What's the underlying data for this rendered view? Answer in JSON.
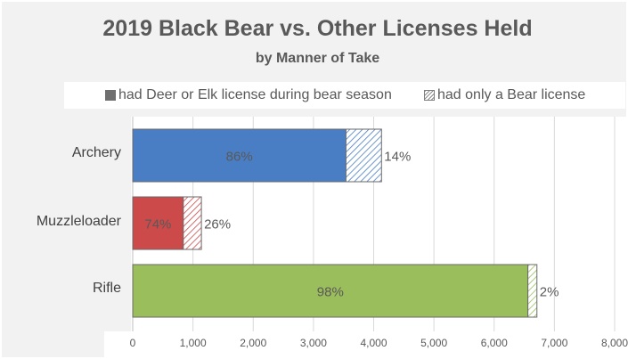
{
  "chart_data": {
    "type": "bar",
    "orientation": "horizontal",
    "stacked": true,
    "title": "2019 Black Bear vs. Other Licenses Held",
    "subtitle": "by Manner of Take",
    "categories": [
      "Archery",
      "Muzzleloader",
      "Rifle"
    ],
    "series": [
      {
        "name": "had Deer or Elk license during bear season",
        "values": [
          3540,
          840,
          6560
        ],
        "labels": [
          "86%",
          "74%",
          "98%"
        ],
        "colors": [
          "#4a7ec4",
          "#cc4a4a",
          "#9bbe5c"
        ],
        "fill": "solid"
      },
      {
        "name": "had only a Bear license",
        "values": [
          590,
          300,
          150
        ],
        "labels": [
          "14%",
          "26%",
          "2%"
        ],
        "colors": [
          "#4a7ec4",
          "#cc4a4a",
          "#9bbe5c"
        ],
        "fill": "hatched"
      }
    ],
    "xlim": [
      0,
      8000
    ],
    "xticks": [
      "0",
      "1,000",
      "2,000",
      "3,000",
      "4,000",
      "5,000",
      "6,000",
      "7,000",
      "8,000"
    ],
    "grid": true,
    "legend_position": "top"
  }
}
